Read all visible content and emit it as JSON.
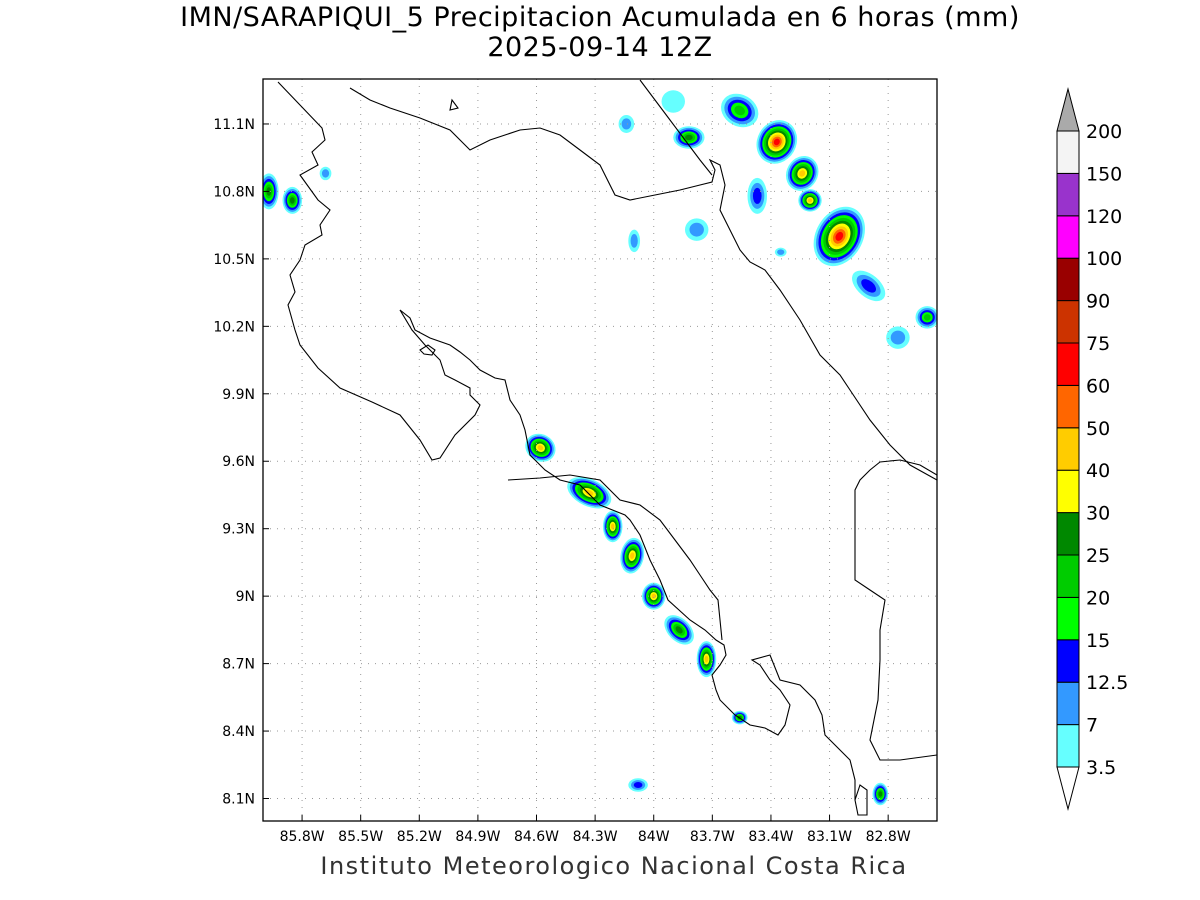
{
  "title_line1": "IMN/SARAPIQUI_5 Precipitacion Acumulada en 6 horas (mm)",
  "title_line2": "2025-09-14 12Z",
  "footer": "Instituto Meteorologico Nacional Costa Rica",
  "map": {
    "lon_range": [
      -86.0,
      -82.55
    ],
    "lat_range": [
      8.0,
      11.3
    ],
    "lon_ticks": [
      {
        "value": -85.8,
        "label": "85.8W"
      },
      {
        "value": -85.5,
        "label": "85.5W"
      },
      {
        "value": -85.2,
        "label": "85.2W"
      },
      {
        "value": -84.9,
        "label": "84.9W"
      },
      {
        "value": -84.6,
        "label": "84.6W"
      },
      {
        "value": -84.3,
        "label": "84.3W"
      },
      {
        "value": -84.0,
        "label": "84W"
      },
      {
        "value": -83.7,
        "label": "83.7W"
      },
      {
        "value": -83.4,
        "label": "83.4W"
      },
      {
        "value": -83.1,
        "label": "83.1W"
      },
      {
        "value": -82.8,
        "label": "82.8W"
      }
    ],
    "lat_ticks": [
      {
        "value": 8.1,
        "label": "8.1N"
      },
      {
        "value": 8.4,
        "label": "8.4N"
      },
      {
        "value": 8.7,
        "label": "8.7N"
      },
      {
        "value": 9.0,
        "label": "9N"
      },
      {
        "value": 9.3,
        "label": "9.3N"
      },
      {
        "value": 9.6,
        "label": "9.6N"
      },
      {
        "value": 9.9,
        "label": "9.9N"
      },
      {
        "value": 10.2,
        "label": "10.2N"
      },
      {
        "value": 10.5,
        "label": "10.5N"
      },
      {
        "value": 10.8,
        "label": "10.8N"
      },
      {
        "value": 11.1,
        "label": "11.1N"
      }
    ],
    "grid": "dotted",
    "precip_cells": [
      {
        "lon": -84.58,
        "lat": 9.66,
        "rx": 0.08,
        "ry": 0.06,
        "rot": 30,
        "peak": 40
      },
      {
        "lon": -84.33,
        "lat": 9.46,
        "rx": 0.12,
        "ry": 0.06,
        "rot": 25,
        "peak": 40
      },
      {
        "lon": -84.21,
        "lat": 9.31,
        "rx": 0.05,
        "ry": 0.07,
        "rot": 0,
        "peak": 40
      },
      {
        "lon": -84.11,
        "lat": 9.18,
        "rx": 0.06,
        "ry": 0.08,
        "rot": 10,
        "peak": 40
      },
      {
        "lon": -84.0,
        "lat": 9.0,
        "rx": 0.06,
        "ry": 0.06,
        "rot": 0,
        "peak": 40
      },
      {
        "lon": -83.87,
        "lat": 8.85,
        "rx": 0.09,
        "ry": 0.05,
        "rot": 45,
        "peak": 25
      },
      {
        "lon": -83.73,
        "lat": 8.72,
        "rx": 0.05,
        "ry": 0.08,
        "rot": 0,
        "peak": 40
      },
      {
        "lon": -83.56,
        "lat": 8.46,
        "rx": 0.04,
        "ry": 0.03,
        "rot": 0,
        "peak": 25
      },
      {
        "lon": -84.08,
        "lat": 8.16,
        "rx": 0.05,
        "ry": 0.03,
        "rot": 0,
        "peak": 12.5
      },
      {
        "lon": -82.84,
        "lat": 8.12,
        "rx": 0.04,
        "ry": 0.05,
        "rot": 0,
        "peak": 25
      },
      {
        "lon": -83.82,
        "lat": 11.04,
        "rx": 0.08,
        "ry": 0.05,
        "rot": 0,
        "peak": 25
      },
      {
        "lon": -83.56,
        "lat": 11.16,
        "rx": 0.1,
        "ry": 0.07,
        "rot": 30,
        "peak": 20
      },
      {
        "lon": -83.37,
        "lat": 11.02,
        "rx": 0.1,
        "ry": 0.1,
        "rot": 30,
        "peak": 60
      },
      {
        "lon": -83.24,
        "lat": 10.88,
        "rx": 0.08,
        "ry": 0.08,
        "rot": 30,
        "peak": 40
      },
      {
        "lon": -83.2,
        "lat": 10.76,
        "rx": 0.06,
        "ry": 0.05,
        "rot": 0,
        "peak": 40
      },
      {
        "lon": -83.05,
        "lat": 10.6,
        "rx": 0.12,
        "ry": 0.14,
        "rot": 30,
        "peak": 60
      },
      {
        "lon": -82.9,
        "lat": 10.38,
        "rx": 0.1,
        "ry": 0.05,
        "rot": 40,
        "peak": 12.5
      },
      {
        "lon": -82.6,
        "lat": 10.24,
        "rx": 0.06,
        "ry": 0.05,
        "rot": 0,
        "peak": 20
      },
      {
        "lon": -85.97,
        "lat": 10.8,
        "rx": 0.05,
        "ry": 0.08,
        "rot": 0,
        "peak": 25
      },
      {
        "lon": -85.85,
        "lat": 10.76,
        "rx": 0.05,
        "ry": 0.06,
        "rot": 0,
        "peak": 25
      },
      {
        "lon": -83.47,
        "lat": 10.78,
        "rx": 0.05,
        "ry": 0.08,
        "rot": 0,
        "peak": 12.5
      },
      {
        "lon": -83.78,
        "lat": 10.63,
        "rx": 0.06,
        "ry": 0.05,
        "rot": 0,
        "peak": 7
      },
      {
        "lon": -84.1,
        "lat": 10.58,
        "rx": 0.03,
        "ry": 0.05,
        "rot": 0,
        "peak": 7
      },
      {
        "lon": -83.35,
        "lat": 10.53,
        "rx": 0.03,
        "ry": 0.02,
        "rot": 0,
        "peak": 7
      },
      {
        "lon": -82.75,
        "lat": 10.15,
        "rx": 0.06,
        "ry": 0.05,
        "rot": 0,
        "peak": 7
      },
      {
        "lon": -83.9,
        "lat": 11.2,
        "rx": 0.06,
        "ry": 0.05,
        "rot": 0,
        "peak": 3.5
      },
      {
        "lon": -84.14,
        "lat": 11.1,
        "rx": 0.04,
        "ry": 0.04,
        "rot": 0,
        "peak": 7
      },
      {
        "lon": -85.68,
        "lat": 10.88,
        "rx": 0.03,
        "ry": 0.03,
        "rot": 0,
        "peak": 7
      }
    ]
  },
  "colorbar": {
    "levels": [
      "3.5",
      "7",
      "12.5",
      "15",
      "20",
      "25",
      "30",
      "40",
      "50",
      "60",
      "75",
      "90",
      "100",
      "120",
      "150",
      "200"
    ],
    "colors": [
      "#66ffff",
      "#3399ff",
      "#0000ff",
      "#00ff00",
      "#00cc00",
      "#008800",
      "#ffff00",
      "#ffcc00",
      "#ff6600",
      "#ff0000",
      "#cc3300",
      "#990000",
      "#ff00ff",
      "#9933cc",
      "#f4f4f4",
      "#aaaaaa"
    ]
  }
}
